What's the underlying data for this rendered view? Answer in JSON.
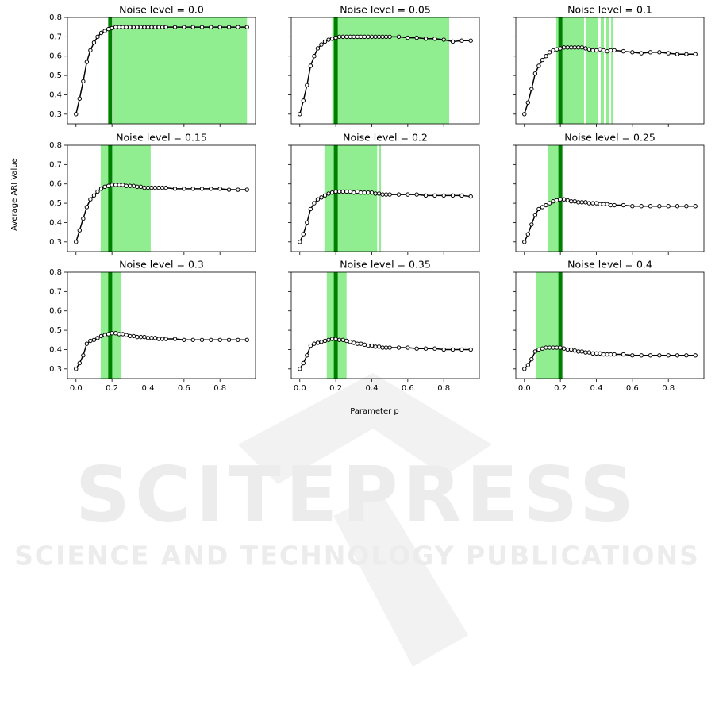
{
  "figure": {
    "xlabel": "Parameter p",
    "ylabel": "Average ARI Value"
  },
  "watermark": {
    "title": "SCITEPRESS",
    "subtitle": "SCIENCE AND TECHNOLOGY PUBLICATIONS"
  },
  "chart_data": [
    {
      "type": "line",
      "title": "Noise level = 0.0",
      "x": [
        0,
        0.02,
        0.04,
        0.06,
        0.08,
        0.1,
        0.12,
        0.14,
        0.16,
        0.18,
        0.2,
        0.22,
        0.24,
        0.26,
        0.28,
        0.3,
        0.32,
        0.34,
        0.36,
        0.38,
        0.4,
        0.42,
        0.44,
        0.46,
        0.48,
        0.5,
        0.55,
        0.6,
        0.65,
        0.7,
        0.75,
        0.8,
        0.85,
        0.9,
        0.95
      ],
      "series": [
        {
          "color": "#000000",
          "values": [
            0.3,
            0.38,
            0.47,
            0.57,
            0.63,
            0.67,
            0.7,
            0.72,
            0.73,
            0.74,
            0.745,
            0.75,
            0.75,
            0.75,
            0.75,
            0.75,
            0.75,
            0.75,
            0.75,
            0.75,
            0.75,
            0.75,
            0.75,
            0.75,
            0.75,
            0.75,
            0.75,
            0.75,
            0.75,
            0.75,
            0.75,
            0.75,
            0.75,
            0.75,
            0.75
          ]
        }
      ],
      "spans": [
        [
          0.208,
          0.95
        ]
      ],
      "span_color": "#90ee90",
      "marker_line": 0.19,
      "marker_color": "#008000",
      "xlim": [
        -0.0475,
        0.9975
      ],
      "ylim": [
        0.25,
        0.8
      ],
      "xticks": [
        {
          "value": 0,
          "label": "0.0"
        },
        0.2,
        0.4,
        0.6,
        0.8
      ],
      "yticks": [
        0.3,
        0.4,
        0.5,
        0.6,
        0.7,
        0.8
      ]
    },
    {
      "type": "line",
      "title": "Noise level = 0.05",
      "x": [
        0,
        0.02,
        0.04,
        0.06,
        0.08,
        0.1,
        0.12,
        0.14,
        0.16,
        0.18,
        0.2,
        0.22,
        0.24,
        0.26,
        0.28,
        0.3,
        0.32,
        0.34,
        0.36,
        0.38,
        0.4,
        0.42,
        0.44,
        0.46,
        0.48,
        0.5,
        0.55,
        0.6,
        0.65,
        0.7,
        0.75,
        0.8,
        0.85,
        0.9,
        0.95
      ],
      "series": [
        {
          "color": "#000000",
          "values": [
            0.3,
            0.37,
            0.45,
            0.55,
            0.6,
            0.64,
            0.66,
            0.675,
            0.685,
            0.69,
            0.695,
            0.7,
            0.7,
            0.7,
            0.7,
            0.7,
            0.7,
            0.7,
            0.7,
            0.7,
            0.7,
            0.7,
            0.7,
            0.7,
            0.7,
            0.7,
            0.7,
            0.695,
            0.695,
            0.69,
            0.69,
            0.685,
            0.675,
            0.68,
            0.68
          ]
        }
      ],
      "spans": [
        [
          0.18,
          0.83
        ]
      ],
      "span_color": "#90ee90",
      "marker_line": 0.2,
      "marker_color": "#008000",
      "xlim": [
        -0.0475,
        0.9975
      ],
      "ylim": [
        0.25,
        0.8
      ],
      "xticks": [
        {
          "value": 0,
          "label": "0.0"
        },
        0.2,
        0.4,
        0.6,
        0.8
      ],
      "yticks": [
        0.3,
        0.4,
        0.5,
        0.6,
        0.7,
        0.8
      ]
    },
    {
      "type": "line",
      "title": "Noise level = 0.1",
      "x": [
        0,
        0.02,
        0.04,
        0.06,
        0.08,
        0.1,
        0.12,
        0.14,
        0.16,
        0.18,
        0.2,
        0.22,
        0.24,
        0.26,
        0.28,
        0.3,
        0.32,
        0.34,
        0.36,
        0.38,
        0.4,
        0.42,
        0.44,
        0.46,
        0.48,
        0.5,
        0.55,
        0.6,
        0.65,
        0.7,
        0.75,
        0.8,
        0.85,
        0.9,
        0.95
      ],
      "series": [
        {
          "color": "#000000",
          "values": [
            0.3,
            0.36,
            0.43,
            0.51,
            0.55,
            0.58,
            0.6,
            0.62,
            0.63,
            0.635,
            0.64,
            0.645,
            0.645,
            0.645,
            0.645,
            0.645,
            0.645,
            0.64,
            0.635,
            0.63,
            0.63,
            0.635,
            0.63,
            0.625,
            0.63,
            0.63,
            0.625,
            0.62,
            0.615,
            0.62,
            0.62,
            0.615,
            0.61,
            0.61,
            0.61
          ]
        }
      ],
      "spans": [
        [
          0.177,
          0.332
        ],
        [
          0.34,
          0.407
        ],
        [
          0.424,
          0.442
        ],
        [
          0.455,
          0.469
        ],
        [
          0.482,
          0.495
        ]
      ],
      "span_color": "#90ee90",
      "marker_line": 0.2,
      "marker_color": "#008000",
      "xlim": [
        -0.0475,
        0.9975
      ],
      "ylim": [
        0.25,
        0.8
      ],
      "xticks": [
        {
          "value": 0,
          "label": "0.0"
        },
        0.2,
        0.4,
        0.6,
        0.8
      ],
      "yticks": [
        0.3,
        0.4,
        0.5,
        0.6,
        0.7,
        0.8
      ]
    },
    {
      "type": "line",
      "title": "Noise level = 0.15",
      "x": [
        0,
        0.02,
        0.04,
        0.06,
        0.08,
        0.1,
        0.12,
        0.14,
        0.16,
        0.18,
        0.2,
        0.22,
        0.24,
        0.26,
        0.28,
        0.3,
        0.32,
        0.34,
        0.36,
        0.38,
        0.4,
        0.42,
        0.44,
        0.46,
        0.48,
        0.5,
        0.55,
        0.6,
        0.65,
        0.7,
        0.75,
        0.8,
        0.85,
        0.9,
        0.95
      ],
      "series": [
        {
          "color": "#000000",
          "values": [
            0.3,
            0.36,
            0.42,
            0.48,
            0.52,
            0.54,
            0.56,
            0.575,
            0.585,
            0.59,
            0.595,
            0.595,
            0.595,
            0.595,
            0.59,
            0.59,
            0.59,
            0.585,
            0.585,
            0.58,
            0.58,
            0.58,
            0.58,
            0.58,
            0.58,
            0.58,
            0.575,
            0.575,
            0.575,
            0.575,
            0.575,
            0.575,
            0.57,
            0.57,
            0.57
          ]
        }
      ],
      "spans": [
        [
          0.137,
          0.415
        ]
      ],
      "span_color": "#90ee90",
      "marker_line": 0.19,
      "marker_color": "#008000",
      "xlim": [
        -0.0475,
        0.9975
      ],
      "ylim": [
        0.25,
        0.8
      ],
      "xticks": [
        {
          "value": 0,
          "label": "0.0"
        },
        0.2,
        0.4,
        0.6,
        0.8
      ],
      "yticks": [
        0.3,
        0.4,
        0.5,
        0.6,
        0.7,
        0.8
      ]
    },
    {
      "type": "line",
      "title": "Noise level = 0.2",
      "x": [
        0,
        0.02,
        0.04,
        0.06,
        0.08,
        0.1,
        0.12,
        0.14,
        0.16,
        0.18,
        0.2,
        0.22,
        0.24,
        0.26,
        0.28,
        0.3,
        0.32,
        0.34,
        0.36,
        0.38,
        0.4,
        0.42,
        0.44,
        0.46,
        0.48,
        0.5,
        0.55,
        0.6,
        0.65,
        0.7,
        0.75,
        0.8,
        0.85,
        0.9,
        0.95
      ],
      "series": [
        {
          "color": "#000000",
          "values": [
            0.3,
            0.34,
            0.4,
            0.47,
            0.5,
            0.52,
            0.53,
            0.54,
            0.55,
            0.555,
            0.56,
            0.56,
            0.56,
            0.56,
            0.56,
            0.555,
            0.56,
            0.555,
            0.555,
            0.555,
            0.555,
            0.55,
            0.55,
            0.545,
            0.545,
            0.545,
            0.545,
            0.545,
            0.545,
            0.54,
            0.54,
            0.54,
            0.54,
            0.54,
            0.535
          ]
        }
      ],
      "spans": [
        [
          0.137,
          0.43
        ],
        [
          0.438,
          0.451
        ]
      ],
      "span_color": "#90ee90",
      "marker_line": 0.2,
      "marker_color": "#008000",
      "xlim": [
        -0.0475,
        0.9975
      ],
      "ylim": [
        0.25,
        0.8
      ],
      "xticks": [
        {
          "value": 0,
          "label": "0.0"
        },
        0.2,
        0.4,
        0.6,
        0.8
      ],
      "yticks": [
        0.3,
        0.4,
        0.5,
        0.6,
        0.7,
        0.8
      ]
    },
    {
      "type": "line",
      "title": "Noise level = 0.25",
      "x": [
        0,
        0.02,
        0.04,
        0.06,
        0.08,
        0.1,
        0.12,
        0.14,
        0.16,
        0.18,
        0.2,
        0.22,
        0.24,
        0.26,
        0.28,
        0.3,
        0.32,
        0.34,
        0.36,
        0.38,
        0.4,
        0.42,
        0.44,
        0.46,
        0.48,
        0.5,
        0.55,
        0.6,
        0.65,
        0.7,
        0.75,
        0.8,
        0.85,
        0.9,
        0.95
      ],
      "series": [
        {
          "color": "#000000",
          "values": [
            0.3,
            0.34,
            0.39,
            0.44,
            0.47,
            0.48,
            0.49,
            0.5,
            0.51,
            0.515,
            0.52,
            0.52,
            0.515,
            0.51,
            0.51,
            0.505,
            0.505,
            0.505,
            0.5,
            0.5,
            0.5,
            0.495,
            0.495,
            0.495,
            0.49,
            0.49,
            0.49,
            0.485,
            0.485,
            0.485,
            0.485,
            0.485,
            0.485,
            0.485,
            0.485
          ]
        }
      ],
      "spans": [
        [
          0.133,
          0.208
        ]
      ],
      "span_color": "#90ee90",
      "marker_line": 0.2,
      "marker_color": "#008000",
      "xlim": [
        -0.0475,
        0.9975
      ],
      "ylim": [
        0.25,
        0.8
      ],
      "xticks": [
        {
          "value": 0,
          "label": "0.0"
        },
        0.2,
        0.4,
        0.6,
        0.8
      ],
      "yticks": [
        0.3,
        0.4,
        0.5,
        0.6,
        0.7,
        0.8
      ]
    },
    {
      "type": "line",
      "title": "Noise level = 0.3",
      "x": [
        0,
        0.02,
        0.04,
        0.06,
        0.08,
        0.1,
        0.12,
        0.14,
        0.16,
        0.18,
        0.2,
        0.22,
        0.24,
        0.26,
        0.28,
        0.3,
        0.32,
        0.34,
        0.36,
        0.38,
        0.4,
        0.42,
        0.44,
        0.46,
        0.48,
        0.5,
        0.55,
        0.6,
        0.65,
        0.7,
        0.75,
        0.8,
        0.85,
        0.9,
        0.95
      ],
      "series": [
        {
          "color": "#000000",
          "values": [
            0.3,
            0.33,
            0.37,
            0.43,
            0.445,
            0.45,
            0.46,
            0.47,
            0.475,
            0.48,
            0.485,
            0.485,
            0.48,
            0.48,
            0.475,
            0.47,
            0.47,
            0.465,
            0.465,
            0.465,
            0.46,
            0.46,
            0.46,
            0.455,
            0.455,
            0.455,
            0.455,
            0.45,
            0.45,
            0.45,
            0.45,
            0.45,
            0.45,
            0.45,
            0.45
          ]
        }
      ],
      "spans": [
        [
          0.137,
          0.248
        ]
      ],
      "span_color": "#90ee90",
      "marker_line": 0.19,
      "marker_color": "#008000",
      "xlim": [
        -0.0475,
        0.9975
      ],
      "ylim": [
        0.25,
        0.8
      ],
      "xticks": [
        {
          "value": 0,
          "label": "0.0"
        },
        0.2,
        0.4,
        0.6,
        0.8
      ],
      "yticks": [
        0.3,
        0.4,
        0.5,
        0.6,
        0.7,
        0.8
      ]
    },
    {
      "type": "line",
      "title": "Noise level = 0.35",
      "x": [
        0,
        0.02,
        0.04,
        0.06,
        0.08,
        0.1,
        0.12,
        0.14,
        0.16,
        0.18,
        0.2,
        0.22,
        0.24,
        0.26,
        0.28,
        0.3,
        0.32,
        0.34,
        0.36,
        0.38,
        0.4,
        0.42,
        0.44,
        0.46,
        0.48,
        0.5,
        0.55,
        0.6,
        0.65,
        0.7,
        0.75,
        0.8,
        0.85,
        0.9,
        0.95
      ],
      "series": [
        {
          "color": "#000000",
          "values": [
            0.3,
            0.33,
            0.37,
            0.42,
            0.43,
            0.435,
            0.44,
            0.445,
            0.45,
            0.455,
            0.455,
            0.45,
            0.45,
            0.445,
            0.44,
            0.435,
            0.43,
            0.43,
            0.425,
            0.42,
            0.42,
            0.415,
            0.415,
            0.41,
            0.41,
            0.41,
            0.41,
            0.41,
            0.405,
            0.405,
            0.405,
            0.4,
            0.4,
            0.4,
            0.4
          ]
        }
      ],
      "spans": [
        [
          0.15,
          0.26
        ]
      ],
      "span_color": "#90ee90",
      "marker_line": 0.2,
      "marker_color": "#008000",
      "xlim": [
        -0.0475,
        0.9975
      ],
      "ylim": [
        0.25,
        0.8
      ],
      "xticks": [
        {
          "value": 0,
          "label": "0.0"
        },
        0.2,
        0.4,
        0.6,
        0.8
      ],
      "yticks": [
        0.3,
        0.4,
        0.5,
        0.6,
        0.7,
        0.8
      ]
    },
    {
      "type": "line",
      "title": "Noise level = 0.4",
      "x": [
        0,
        0.02,
        0.04,
        0.06,
        0.08,
        0.1,
        0.12,
        0.14,
        0.16,
        0.18,
        0.2,
        0.22,
        0.24,
        0.26,
        0.28,
        0.3,
        0.32,
        0.34,
        0.36,
        0.38,
        0.4,
        0.42,
        0.44,
        0.46,
        0.48,
        0.5,
        0.55,
        0.6,
        0.65,
        0.7,
        0.75,
        0.8,
        0.85,
        0.9,
        0.95
      ],
      "series": [
        {
          "color": "#000000",
          "values": [
            0.3,
            0.32,
            0.35,
            0.39,
            0.4,
            0.405,
            0.41,
            0.41,
            0.41,
            0.41,
            0.41,
            0.405,
            0.4,
            0.4,
            0.395,
            0.39,
            0.39,
            0.385,
            0.385,
            0.38,
            0.38,
            0.38,
            0.375,
            0.375,
            0.375,
            0.375,
            0.375,
            0.37,
            0.37,
            0.37,
            0.37,
            0.37,
            0.37,
            0.37,
            0.37
          ]
        }
      ],
      "spans": [
        [
          0.066,
          0.208
        ]
      ],
      "span_color": "#90ee90",
      "marker_line": 0.2,
      "marker_color": "#008000",
      "xlim": [
        -0.0475,
        0.9975
      ],
      "ylim": [
        0.25,
        0.8
      ],
      "xticks": [
        {
          "value": 0,
          "label": "0.0"
        },
        0.2,
        0.4,
        0.6,
        0.8
      ],
      "yticks": [
        0.3,
        0.4,
        0.5,
        0.6,
        0.7,
        0.8
      ]
    }
  ]
}
